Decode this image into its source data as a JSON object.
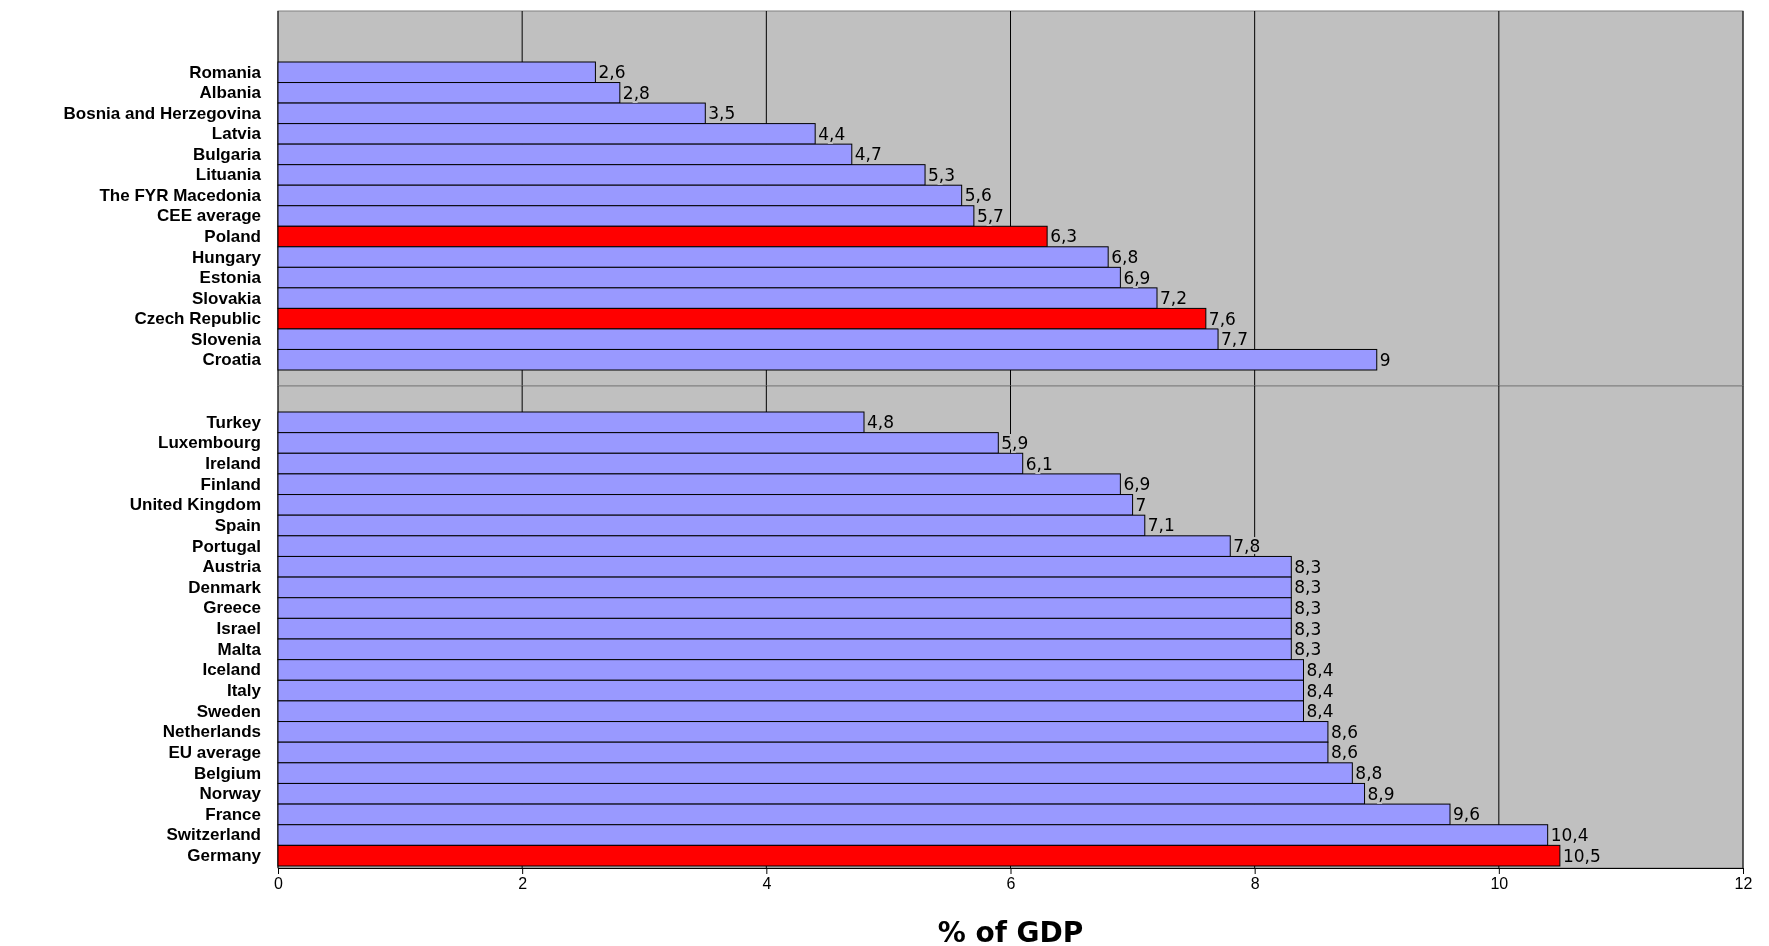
{
  "chart_data": [
    {
      "type": "bar",
      "orientation": "horizontal",
      "categories": [
        "Romania",
        "Albania",
        "Bosnia and Herzegovina",
        "Latvia",
        "Bulgaria",
        "Lituania",
        "The FYR Macedonia",
        "CEE average",
        "Poland",
        "Hungary",
        "Estonia",
        "Slovakia",
        "Czech Republic",
        "Slovenia",
        "Croatia"
      ],
      "values": [
        2.6,
        2.8,
        3.5,
        4.4,
        4.7,
        5.3,
        5.6,
        5.7,
        6.3,
        6.8,
        6.9,
        7.2,
        7.6,
        7.7,
        9
      ],
      "value_labels": [
        "2,6",
        "2,8",
        "3,5",
        "4,4",
        "4,7",
        "5,3",
        "5,6",
        "5,7",
        "6,3",
        "6,8",
        "6,9",
        "7,2",
        "7,6",
        "7,7",
        "9"
      ],
      "colors": [
        "#9999ff",
        "#9999ff",
        "#9999ff",
        "#9999ff",
        "#9999ff",
        "#9999ff",
        "#9999ff",
        "#9999ff",
        "#ff0000",
        "#9999ff",
        "#9999ff",
        "#9999ff",
        "#ff0000",
        "#9999ff",
        "#9999ff"
      ],
      "xlim": [
        0,
        12
      ],
      "xticks": [
        0,
        2,
        4,
        6,
        8,
        10,
        12
      ],
      "grid": "x",
      "tick_labels": "y"
    },
    {
      "type": "bar",
      "orientation": "horizontal",
      "xlabel": "% of GDP",
      "categories": [
        "Turkey",
        "Luxembourg",
        "Ireland",
        "Finland",
        "United Kingdom",
        "Spain",
        "Portugal",
        "Austria",
        "Denmark",
        "Greece",
        "Israel",
        "Malta",
        "Iceland",
        "Italy",
        "Sweden",
        "Netherlands",
        "EU average",
        "Belgium",
        "Norway",
        "France",
        "Switzerland",
        "Germany"
      ],
      "values": [
        4.8,
        5.9,
        6.1,
        6.9,
        7,
        7.1,
        7.8,
        8.3,
        8.3,
        8.3,
        8.3,
        8.3,
        8.4,
        8.4,
        8.4,
        8.6,
        8.6,
        8.8,
        8.9,
        9.6,
        10.4,
        10.5
      ],
      "value_labels": [
        "4,8",
        "5,9",
        "6,1",
        "6,9",
        "7",
        "7,1",
        "7,8",
        "8,3",
        "8,3",
        "8,3",
        "8,3",
        "8,3",
        "8,4",
        "8,4",
        "8,4",
        "8,6",
        "8,6",
        "8,8",
        "8,9",
        "9,6",
        "10,4",
        "10,5"
      ],
      "colors": [
        "#9999ff",
        "#9999ff",
        "#9999ff",
        "#9999ff",
        "#9999ff",
        "#9999ff",
        "#9999ff",
        "#9999ff",
        "#9999ff",
        "#9999ff",
        "#9999ff",
        "#9999ff",
        "#9999ff",
        "#9999ff",
        "#9999ff",
        "#9999ff",
        "#9999ff",
        "#9999ff",
        "#9999ff",
        "#9999ff",
        "#9999ff",
        "#ff0000"
      ],
      "xlim": [
        0,
        12
      ],
      "xticks": [
        0,
        2,
        4,
        6,
        8,
        10,
        12
      ],
      "grid": "x"
    }
  ]
}
